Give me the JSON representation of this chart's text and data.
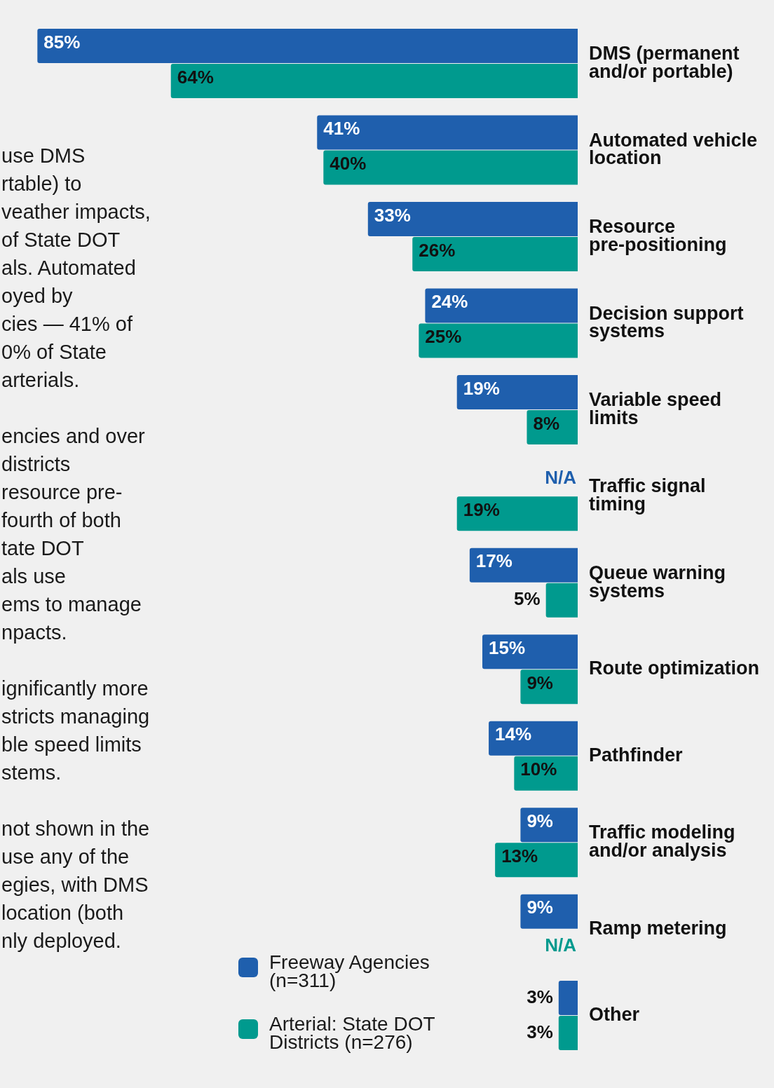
{
  "chart_data": {
    "type": "bar",
    "orientation": "horizontal",
    "categories": [
      "DMS (permanent and/or portable)",
      "Automated vehicle location",
      "Resource pre-positioning",
      "Decision support systems",
      "Variable speed limits",
      "Traffic signal timing",
      "Queue warning systems",
      "Route optimization",
      "Pathfinder",
      "Traffic modeling and/or analysis",
      "Ramp metering",
      "Other"
    ],
    "series": [
      {
        "name": "Freeway Agencies (n=311)",
        "color": "#1f5fad",
        "values": [
          85,
          41,
          33,
          24,
          19,
          null,
          17,
          15,
          14,
          9,
          9,
          3
        ],
        "value_labels": [
          "85%",
          "41%",
          "33%",
          "24%",
          "19%",
          "N/A",
          "17%",
          "15%",
          "14%",
          "9%",
          "9%",
          "3%"
        ]
      },
      {
        "name": "Arterial: State DOT Districts (n=276)",
        "color": "#009a8e",
        "values": [
          64,
          40,
          26,
          25,
          8,
          19,
          5,
          9,
          10,
          13,
          null,
          3
        ],
        "value_labels": [
          "64%",
          "40%",
          "26%",
          "25%",
          "8%",
          "19%",
          "5%",
          "9%",
          "10%",
          "13%",
          "N/A",
          "3%"
        ]
      }
    ],
    "tick_labels": "y",
    "grid": false,
    "legend": "bottom",
    "annotations": [
      "use DMS\nrtable) to\nveather impacts,\nof State DOT\nals. Automated\noyed by\ncies — 41% of\n0% of State\narterials.",
      "encies and over\ndistricts\nresource pre-\nfourth of both\ntate DOT\nals use\nems to manage\nnpacts.",
      "ignificantly more\nstricts managing\nble speed limits\nstems.",
      "not shown in the\nuse any of the\negies, with DMS\nlocation (both\nnly deployed."
    ]
  }
}
